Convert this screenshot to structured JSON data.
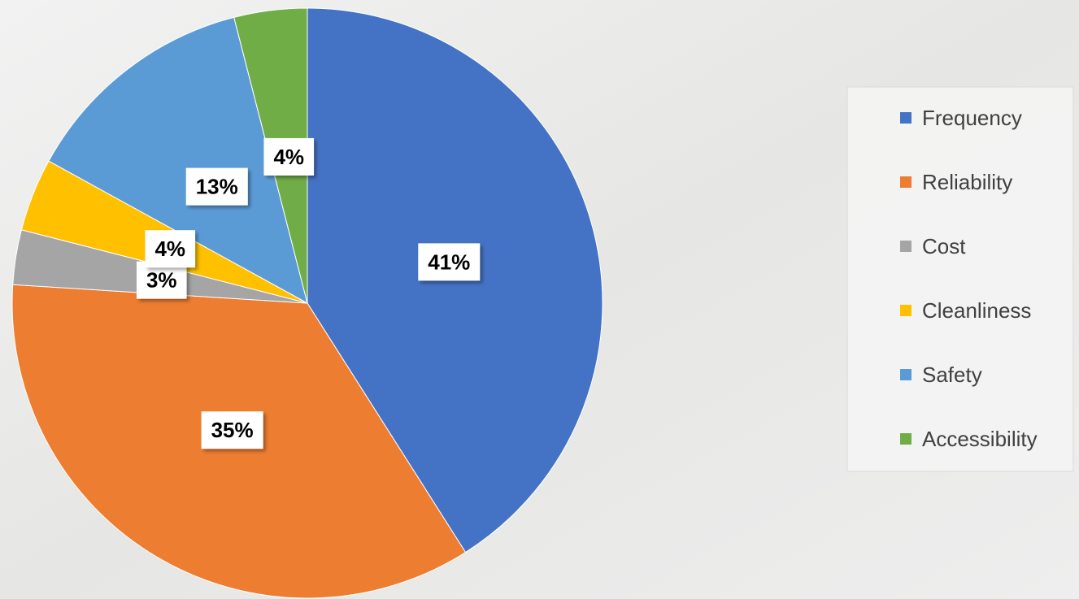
{
  "chart_data": {
    "type": "pie",
    "categories": [
      "Frequency",
      "Reliability",
      "Cost",
      "Cleanliness",
      "Safety",
      "Accessibility"
    ],
    "values": [
      41,
      35,
      3,
      4,
      13,
      4
    ],
    "value_labels": [
      "41%",
      "35%",
      "3%",
      "4%",
      "13%",
      "4%"
    ],
    "colors": [
      "#4472c4",
      "#ed7d31",
      "#a5a5a5",
      "#ffc000",
      "#5b9bd5",
      "#70ad47"
    ],
    "legend": "right"
  }
}
